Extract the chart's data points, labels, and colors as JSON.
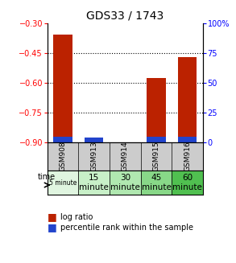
{
  "title": "GDS33 / 1743",
  "samples": [
    "GSM908",
    "GSM913",
    "GSM914",
    "GSM915",
    "GSM916"
  ],
  "time_labels": [
    "5 minute",
    "15\nminute",
    "30\nminute",
    "45\nminute",
    "60\nminute"
  ],
  "time_colors": [
    "#e0f5e0",
    "#c8f0c8",
    "#b0e8b0",
    "#88d888",
    "#50c050"
  ],
  "log_ratio": [
    -0.355,
    -0.875,
    -0.9,
    -0.575,
    -0.47
  ],
  "percentile_rank_pct": [
    5.0,
    4.0,
    0.0,
    5.0,
    4.5
  ],
  "ylim_left": [
    -0.9,
    -0.3
  ],
  "ylim_right": [
    0,
    100
  ],
  "yticks_left": [
    -0.9,
    -0.75,
    -0.6,
    -0.45,
    -0.3
  ],
  "yticks_right": [
    0,
    25,
    50,
    75,
    100
  ],
  "bar_color_red": "#bb2200",
  "bar_color_blue": "#2244cc",
  "background_color": "#ffffff",
  "title_fontsize": 10
}
